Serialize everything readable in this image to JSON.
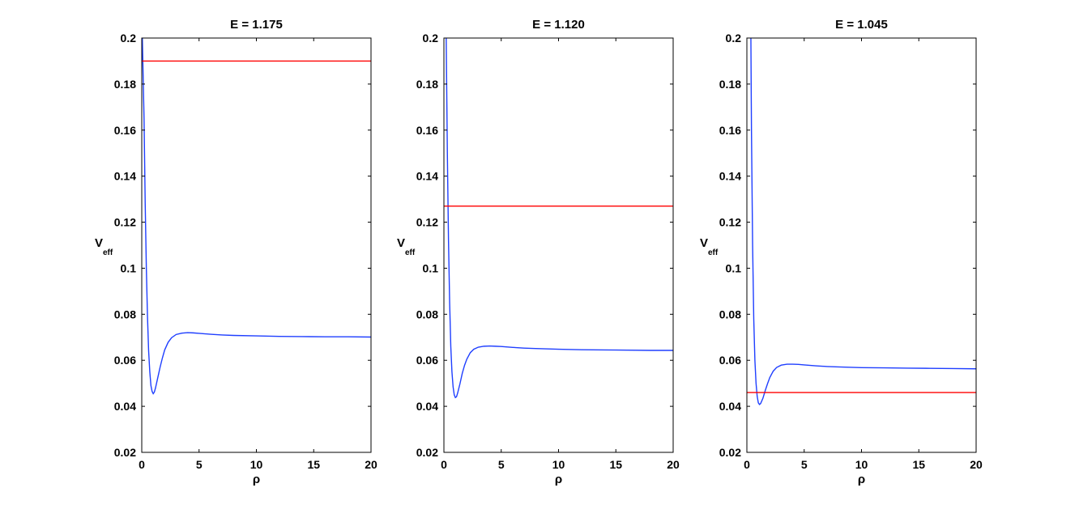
{
  "chart_data": [
    {
      "type": "line",
      "title": "E = 1.175",
      "xlabel": "ρ",
      "ylabel": "V",
      "ylabel_sub": "eff",
      "xlim": [
        0,
        20
      ],
      "ylim": [
        0.02,
        0.2
      ],
      "xticks": [
        0,
        5,
        10,
        15,
        20
      ],
      "yticks": [
        0.02,
        0.04,
        0.06,
        0.08,
        0.1,
        0.12,
        0.14,
        0.16,
        0.18,
        0.2
      ],
      "xtick_labels": [
        "0",
        "5",
        "10",
        "15",
        "20"
      ],
      "ytick_labels": [
        "0.02",
        "0.04",
        "0.06",
        "0.08",
        "0.1",
        "0.12",
        "0.14",
        "0.16",
        "0.18",
        "0.2"
      ],
      "grid": false,
      "series": [
        {
          "color": "#1f3fff",
          "x": [
            0.05,
            0.2,
            0.3,
            0.4,
            0.5,
            0.6,
            0.7,
            0.8,
            0.9,
            1.0,
            1.1,
            1.2,
            1.4,
            1.6,
            1.8,
            2.0,
            2.3,
            2.6,
            3.0,
            3.5,
            4.0,
            4.5,
            5.0,
            6.0,
            7.0,
            8.0,
            10.0,
            12.0,
            14.0,
            16.0,
            18.0,
            20.0
          ],
          "y": [
            0.2,
            0.165,
            0.128,
            0.1,
            0.079,
            0.064,
            0.055,
            0.049,
            0.0465,
            0.0455,
            0.0462,
            0.048,
            0.0525,
            0.057,
            0.061,
            0.0645,
            0.0678,
            0.0698,
            0.0712,
            0.0718,
            0.072,
            0.0719,
            0.0717,
            0.0713,
            0.071,
            0.0708,
            0.0706,
            0.0704,
            0.0703,
            0.0702,
            0.0702,
            0.0701
          ]
        },
        {
          "color": "#ff0000",
          "x": [
            0,
            20
          ],
          "y": [
            0.19,
            0.19
          ]
        }
      ]
    },
    {
      "type": "line",
      "title": "E = 1.120",
      "xlabel": "ρ",
      "ylabel": "V",
      "ylabel_sub": "eff",
      "xlim": [
        0,
        20
      ],
      "ylim": [
        0.02,
        0.2
      ],
      "xticks": [
        0,
        5,
        10,
        15,
        20
      ],
      "yticks": [
        0.02,
        0.04,
        0.06,
        0.08,
        0.1,
        0.12,
        0.14,
        0.16,
        0.18,
        0.2
      ],
      "xtick_labels": [
        "0",
        "5",
        "10",
        "15",
        "20"
      ],
      "ytick_labels": [
        "0.02",
        "0.04",
        "0.06",
        "0.08",
        "0.1",
        "0.12",
        "0.14",
        "0.16",
        "0.18",
        "0.2"
      ],
      "grid": false,
      "series": [
        {
          "color": "#1f3fff",
          "x": [
            0.2,
            0.3,
            0.4,
            0.5,
            0.6,
            0.7,
            0.8,
            0.9,
            1.0,
            1.1,
            1.2,
            1.4,
            1.6,
            1.8,
            2.0,
            2.3,
            2.6,
            3.0,
            3.5,
            4.0,
            4.5,
            5.0,
            6.0,
            7.0,
            8.0,
            10.0,
            12.0,
            14.0,
            16.0,
            18.0,
            20.0
          ],
          "y": [
            0.2,
            0.15,
            0.112,
            0.085,
            0.066,
            0.055,
            0.0485,
            0.045,
            0.0438,
            0.0442,
            0.0458,
            0.0498,
            0.0543,
            0.0578,
            0.0605,
            0.0633,
            0.0648,
            0.0657,
            0.0661,
            0.0662,
            0.0661,
            0.066,
            0.0656,
            0.0653,
            0.0651,
            0.0648,
            0.0646,
            0.0645,
            0.0644,
            0.0643,
            0.0643
          ]
        },
        {
          "color": "#ff0000",
          "x": [
            0,
            20
          ],
          "y": [
            0.127,
            0.127
          ]
        }
      ]
    },
    {
      "type": "line",
      "title": "E = 1.045",
      "xlabel": "ρ",
      "ylabel": "V",
      "ylabel_sub": "eff",
      "xlim": [
        0,
        20
      ],
      "ylim": [
        0.02,
        0.2
      ],
      "xticks": [
        0,
        5,
        10,
        15,
        20
      ],
      "yticks": [
        0.02,
        0.04,
        0.06,
        0.08,
        0.1,
        0.12,
        0.14,
        0.16,
        0.18,
        0.2
      ],
      "xtick_labels": [
        "0",
        "5",
        "10",
        "15",
        "20"
      ],
      "ytick_labels": [
        "0.02",
        "0.04",
        "0.06",
        "0.08",
        "0.1",
        "0.12",
        "0.14",
        "0.16",
        "0.18",
        "0.2"
      ],
      "grid": false,
      "series": [
        {
          "color": "#1f3fff",
          "x": [
            0.35,
            0.4,
            0.5,
            0.6,
            0.7,
            0.8,
            0.9,
            1.0,
            1.1,
            1.2,
            1.4,
            1.6,
            1.8,
            2.0,
            2.3,
            2.6,
            3.0,
            3.5,
            4.0,
            4.5,
            5.0,
            6.0,
            7.0,
            8.0,
            10.0,
            12.0,
            14.0,
            16.0,
            18.0,
            20.0
          ],
          "y": [
            0.2,
            0.16,
            0.11,
            0.078,
            0.06,
            0.05,
            0.0443,
            0.0415,
            0.0408,
            0.0412,
            0.0435,
            0.0468,
            0.0498,
            0.0525,
            0.0553,
            0.0569,
            0.0579,
            0.0583,
            0.0583,
            0.0582,
            0.058,
            0.0576,
            0.0573,
            0.0571,
            0.0568,
            0.0567,
            0.0566,
            0.0565,
            0.0564,
            0.0563
          ]
        },
        {
          "color": "#ff0000",
          "x": [
            0,
            20
          ],
          "y": [
            0.046,
            0.046
          ]
        }
      ]
    }
  ]
}
